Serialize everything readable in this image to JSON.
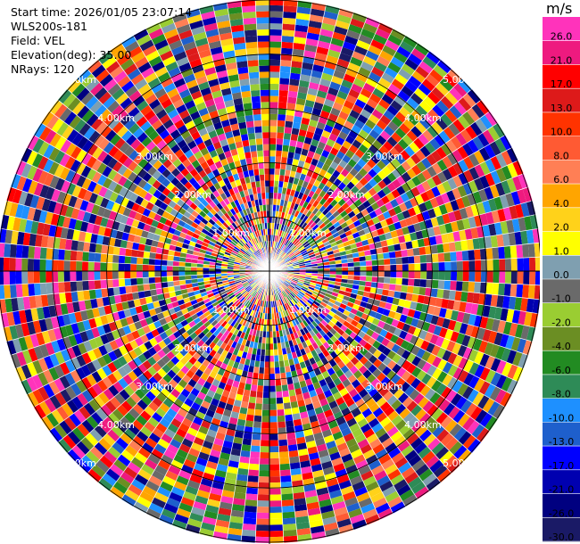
{
  "info": {
    "start_time": "Start time: 2026/01/05 23:07:14",
    "site": "WLS200s-181",
    "field": "Field: VEL",
    "elevation": "Elevation(deg): 35.00",
    "nrays": "NRays: 120"
  },
  "colorbar": {
    "unit": "m/s",
    "ticks": [
      "26.0",
      "21.0",
      "17.0",
      "13.0",
      "10.0",
      "8.0",
      "6.0",
      "4.0",
      "2.0",
      "1.0",
      "0.0",
      "-1.0",
      "-2.0",
      "-4.0",
      "-6.0",
      "-8.0",
      "-10.0",
      "-13.0",
      "-17.0",
      "-21.0",
      "-26.0",
      "-30.0"
    ],
    "colors": [
      "#ff33bb",
      "#ee1a7f",
      "#ff0000",
      "#dd1a1a",
      "#ff3300",
      "#ff5a33",
      "#ff7f55",
      "#ffa500",
      "#ffd21a",
      "#ffff00",
      "#7f9fb0",
      "#6a6a6a",
      "#9acd32",
      "#6b8e23",
      "#228b22",
      "#2e8b57",
      "#1e90ff",
      "#1e5fcc",
      "#0000ff",
      "#0000b0",
      "#000080",
      "#1a1a66"
    ]
  },
  "chart_data": {
    "type": "heatmap",
    "projection": "polar PPI",
    "field": "VEL",
    "units": "m/s",
    "nrays": 120,
    "range_rings_km": [
      1.0,
      2.0,
      3.0,
      4.0,
      5.0
    ],
    "range_labels": [
      "1.00km",
      "2.00km",
      "3.00km",
      "4.00km",
      "5.00km"
    ],
    "ring_label_directions": [
      "NE",
      "NW",
      "SE",
      "SW"
    ],
    "colorbar_range": [
      -30.0,
      26.0
    ],
    "values_note": "dense speckled radial velocity field; random-like distribution across full color scale"
  }
}
